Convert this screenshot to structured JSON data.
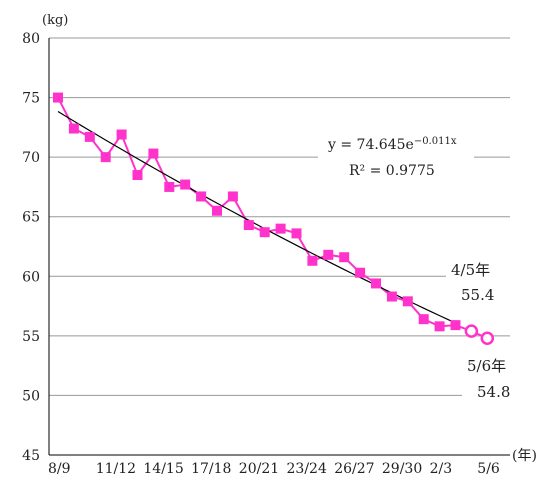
{
  "chart_data": {
    "type": "line",
    "y_unit": "(kg)",
    "x_unit": "(年)",
    "ylim": [
      45,
      80
    ],
    "y_ticks": [
      45,
      50,
      55,
      60,
      65,
      70,
      75,
      80
    ],
    "grid": "horizontal",
    "x_tick_labels": [
      "8/9",
      "11/12",
      "14/15",
      "17/18",
      "20/21",
      "23/24",
      "26/27",
      "29/30",
      "2/3",
      "5/6"
    ],
    "series": [
      {
        "values": [
          75.0,
          72.4,
          71.7,
          70.0,
          71.9,
          68.5,
          70.3,
          67.5,
          67.7,
          66.7,
          65.5,
          66.7,
          64.3,
          63.7,
          64.0,
          63.6,
          61.3,
          61.8,
          61.6,
          60.3,
          59.4,
          58.3,
          57.9,
          56.4,
          55.8,
          55.9
        ]
      },
      {
        "values": [
          55.4,
          54.8
        ]
      }
    ],
    "trendline": {
      "type": "exponential",
      "a": 74.645,
      "b": -0.011
    },
    "equation": {
      "prefix": "y = 74.645e",
      "exponent": "−0.011x",
      "r2": "R² = 0.9775"
    },
    "annotations": [
      {
        "label": "4/5年",
        "value": "55.4"
      },
      {
        "label": "5/6年",
        "value": "54.8"
      }
    ],
    "colors": {
      "series": "#ff33cc",
      "trend": "#000000",
      "grid": "#999999"
    }
  }
}
